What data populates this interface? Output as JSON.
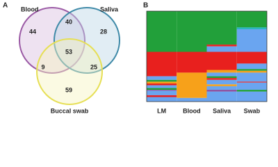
{
  "panel_a": {
    "label": "A",
    "sets": [
      {
        "name": "Blood",
        "color": "#9b5aa5",
        "fill": "#d9bfe0"
      },
      {
        "name": "Saliva",
        "color": "#3f8aa8",
        "fill": "#bcd8e6"
      },
      {
        "name": "Buccal swab",
        "color": "#e6df55",
        "fill": "#f7f3c0"
      }
    ],
    "regions": {
      "blood_only": 44,
      "blood_saliva": 40,
      "saliva_only": 28,
      "all_three": 53,
      "blood_buccal": 9,
      "saliva_buccal": 25,
      "buccal_only": 59
    }
  },
  "chart_data": {
    "type": "stacked-column",
    "label": "B",
    "categories": [
      "LM",
      "Blood",
      "Saliva",
      "Swab"
    ],
    "columns": [
      {
        "colors": [
          "#22a03a",
          "#e8201e",
          "#6aa5f0",
          "#22a03a",
          "#f7a11a",
          "#e8201e",
          "#6aa5f0",
          "#22a03a",
          "#8a4fa0",
          "#6aa5f0",
          "#e8201e",
          "#6aa5f0"
        ],
        "values": [
          45,
          27,
          4,
          2,
          2,
          2,
          3,
          2,
          1,
          5,
          2,
          5
        ]
      },
      {
        "colors": [
          "#22a03a",
          "#e8201e",
          "#f7a11a",
          "#6aa5f0"
        ],
        "values": [
          45,
          23,
          28,
          4
        ]
      },
      {
        "colors": [
          "#22a03a",
          "#e8201e",
          "#6aa5f0",
          "#e8201e",
          "#f7a11a",
          "#6aa5f0",
          "#22a03a",
          "#e8201e",
          "#6aa5f0",
          "#f7a11a",
          "#6aa5f0",
          "#8a4fa0",
          "#6aa5f0"
        ],
        "values": [
          37,
          2,
          6,
          20,
          3,
          4,
          2,
          2,
          5,
          2,
          4,
          2,
          11
        ]
      },
      {
        "colors": [
          "#22a03a",
          "#2bb5c0",
          "#6aa5f0",
          "#e8201e",
          "#6aa5f0",
          "#22a03a",
          "#f7a11a",
          "#6aa5f0",
          "#e8201e",
          "#6aa5f0",
          "#22a03a",
          "#6aa5f0"
        ],
        "values": [
          18,
          2,
          25,
          13,
          6,
          2,
          2,
          10,
          1,
          8,
          2,
          11
        ]
      }
    ]
  }
}
